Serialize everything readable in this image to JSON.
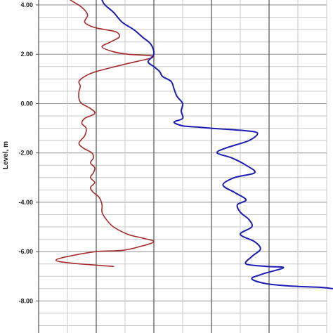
{
  "chart_data": {
    "type": "line",
    "title": "",
    "xlabel": "",
    "ylabel": "Level, m",
    "ylim": [
      -9.3,
      4.2
    ],
    "xlim": [
      0,
      10
    ],
    "grid": true,
    "y_ticks": [
      4,
      2,
      0,
      -2,
      -4,
      -6,
      -8
    ],
    "y_tick_labels": [
      "4.00",
      "2.00",
      "0.00",
      "-2.00",
      "-4.00",
      "-6.00",
      "-8.00"
    ],
    "x_gridlines": [
      0,
      1,
      2,
      3,
      4,
      5,
      6,
      7,
      8,
      9,
      10
    ],
    "x_major_gridlines": [
      2,
      4,
      6,
      8
    ],
    "series": [
      {
        "color": "#a52a2a",
        "points": [
          [
            1.1,
            4.2
          ],
          [
            1.5,
            3.9
          ],
          [
            1.7,
            3.6
          ],
          [
            1.6,
            3.3
          ],
          [
            1.9,
            3.1
          ],
          [
            2.3,
            3.0
          ],
          [
            2.7,
            2.9
          ],
          [
            2.8,
            2.7
          ],
          [
            2.5,
            2.5
          ],
          [
            2.2,
            2.3
          ],
          [
            2.6,
            2.1
          ],
          [
            3.1,
            2.0
          ],
          [
            4.0,
            1.9
          ],
          [
            3.0,
            1.6
          ],
          [
            2.0,
            1.3
          ],
          [
            1.6,
            1.1
          ],
          [
            1.4,
            0.9
          ],
          [
            1.45,
            0.7
          ],
          [
            1.4,
            0.5
          ],
          [
            1.4,
            0.2
          ],
          [
            1.5,
            0.0
          ],
          [
            1.8,
            -0.2
          ],
          [
            1.95,
            -0.4
          ],
          [
            1.6,
            -0.6
          ],
          [
            1.5,
            -0.8
          ],
          [
            1.65,
            -1.0
          ],
          [
            1.6,
            -1.3
          ],
          [
            1.4,
            -1.6
          ],
          [
            1.55,
            -1.8
          ],
          [
            1.85,
            -2.0
          ],
          [
            1.9,
            -2.2
          ],
          [
            1.8,
            -2.4
          ],
          [
            1.95,
            -2.6
          ],
          [
            1.9,
            -2.8
          ],
          [
            1.8,
            -3.0
          ],
          [
            1.95,
            -3.2
          ],
          [
            1.8,
            -3.4
          ],
          [
            1.9,
            -3.6
          ],
          [
            2.1,
            -3.8
          ],
          [
            2.2,
            -4.1
          ],
          [
            2.2,
            -4.4
          ],
          [
            2.35,
            -4.7
          ],
          [
            2.6,
            -5.0
          ],
          [
            3.1,
            -5.3
          ],
          [
            3.6,
            -5.45
          ],
          [
            4.0,
            -5.6
          ],
          [
            3.5,
            -5.8
          ],
          [
            2.9,
            -5.95
          ],
          [
            2.0,
            -6.0
          ],
          [
            1.0,
            -6.2
          ],
          [
            0.6,
            -6.35
          ],
          [
            1.0,
            -6.45
          ],
          [
            2.0,
            -6.55
          ],
          [
            2.6,
            -6.6
          ]
        ]
      },
      {
        "color": "#1c1cb4",
        "points": [
          [
            2.2,
            4.2
          ],
          [
            2.3,
            4.0
          ],
          [
            2.6,
            3.7
          ],
          [
            2.9,
            3.3
          ],
          [
            3.3,
            3.0
          ],
          [
            3.6,
            2.7
          ],
          [
            3.9,
            2.4
          ],
          [
            4.0,
            2.0
          ],
          [
            3.8,
            1.7
          ],
          [
            4.0,
            1.5
          ],
          [
            4.2,
            1.3
          ],
          [
            4.3,
            1.1
          ],
          [
            4.6,
            0.9
          ],
          [
            4.7,
            0.6
          ],
          [
            4.8,
            0.3
          ],
          [
            5.0,
            0.0
          ],
          [
            4.95,
            -0.3
          ],
          [
            5.0,
            -0.6
          ],
          [
            4.7,
            -0.75
          ],
          [
            5.0,
            -0.9
          ],
          [
            5.5,
            -0.95
          ],
          [
            6.0,
            -1.0
          ],
          [
            6.6,
            -1.05
          ],
          [
            7.2,
            -1.1
          ],
          [
            7.6,
            -1.2
          ],
          [
            7.3,
            -1.5
          ],
          [
            6.5,
            -1.8
          ],
          [
            6.2,
            -2.0
          ],
          [
            6.7,
            -2.2
          ],
          [
            7.2,
            -2.5
          ],
          [
            7.5,
            -2.8
          ],
          [
            6.8,
            -3.0
          ],
          [
            6.4,
            -3.3
          ],
          [
            6.8,
            -3.6
          ],
          [
            7.2,
            -3.9
          ],
          [
            6.9,
            -4.1
          ],
          [
            7.0,
            -4.4
          ],
          [
            7.3,
            -4.7
          ],
          [
            7.4,
            -5.0
          ],
          [
            7.0,
            -5.3
          ],
          [
            7.5,
            -5.6
          ],
          [
            7.7,
            -5.9
          ],
          [
            7.4,
            -6.2
          ],
          [
            7.2,
            -6.5
          ],
          [
            7.9,
            -6.6
          ],
          [
            8.5,
            -6.65
          ],
          [
            7.8,
            -6.9
          ],
          [
            7.4,
            -7.1
          ],
          [
            7.9,
            -7.3
          ],
          [
            8.8,
            -7.4
          ],
          [
            9.8,
            -7.45
          ],
          [
            10.2,
            -7.5
          ]
        ]
      }
    ]
  }
}
